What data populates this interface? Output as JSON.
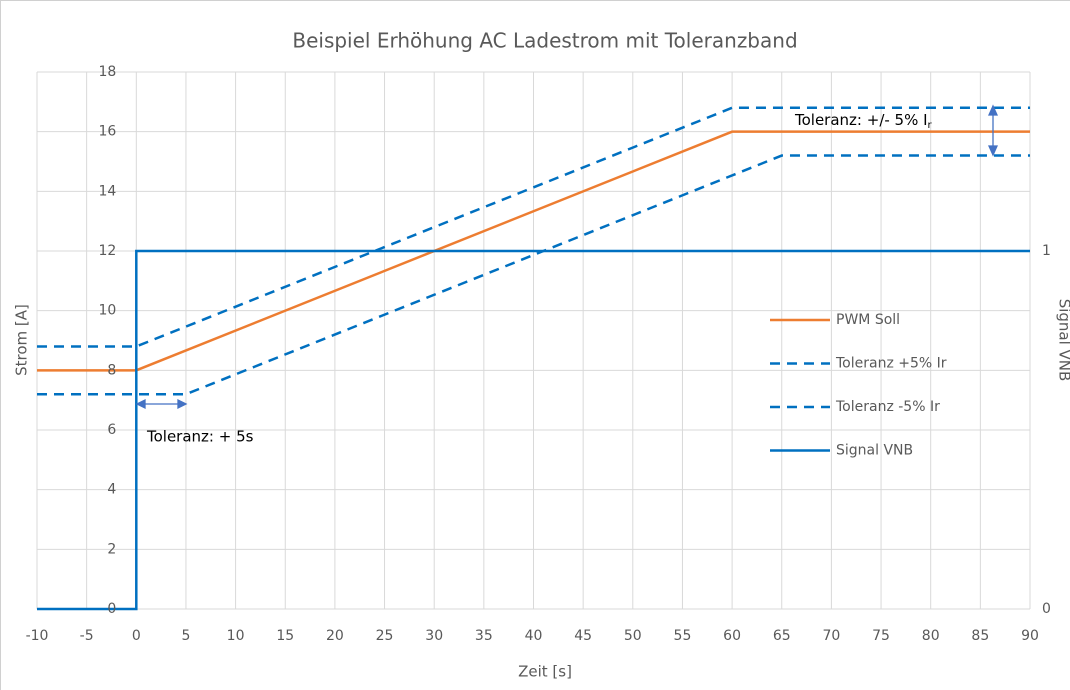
{
  "chart_data": {
    "type": "line",
    "title": "Beispiel Erhöhung AC Ladestrom mit Toleranzband",
    "xlabel": "Zeit [s]",
    "ylabel": "Strom [A]",
    "y2label": "Signal VNB",
    "xlim": [
      -10,
      90
    ],
    "xticks": [
      -10,
      -5,
      0,
      5,
      10,
      15,
      20,
      25,
      30,
      35,
      40,
      45,
      50,
      55,
      60,
      65,
      70,
      75,
      80,
      85,
      90
    ],
    "ylim": [
      0,
      18
    ],
    "yticks": [
      0,
      2,
      4,
      6,
      8,
      10,
      12,
      14,
      16,
      18
    ],
    "y2lim": [
      0,
      1.5
    ],
    "y2ticks": [
      0,
      1
    ],
    "grid": true,
    "legend": "right",
    "series": [
      {
        "name": "PWM Soll",
        "color": "#ed7d31",
        "dash": false,
        "x": [
          -10,
          0,
          60,
          90
        ],
        "values": [
          8,
          8,
          16,
          16
        ]
      },
      {
        "name": "Toleranz +5% Ir",
        "color": "#0070c0",
        "dash": true,
        "x": [
          -10,
          0,
          60,
          90
        ],
        "values": [
          8.8,
          8.8,
          16.8,
          16.8
        ]
      },
      {
        "name": "Toleranz -5% Ir",
        "color": "#0070c0",
        "dash": true,
        "x": [
          -10,
          5,
          65,
          90
        ],
        "values": [
          7.2,
          7.2,
          15.2,
          15.2
        ]
      },
      {
        "name": "Signal VNB",
        "color": "#0070c0",
        "dash": false,
        "axis": "y2",
        "x": [
          -10,
          0,
          0,
          90
        ],
        "values": [
          0,
          0,
          1,
          1
        ]
      }
    ],
    "annotations": [
      {
        "text": "Toleranz: +/- 5% I",
        "subscript": "r"
      },
      {
        "text": "Toleranz: + 5s"
      }
    ]
  }
}
